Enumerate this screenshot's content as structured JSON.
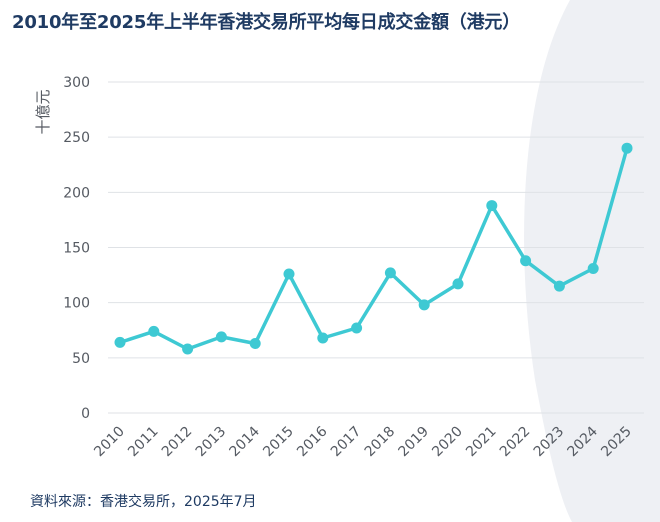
{
  "title": "2010年至2025年上半年香港交易所平均每日成交金額（港元）",
  "source": "資料來源：香港交易所，2025年7月",
  "colors": {
    "line": "#3ec9d3",
    "title": "#1f3b63",
    "grid": "#dfe2e6",
    "background_curve": "#eef0f4"
  },
  "chart_data": {
    "type": "line",
    "title": "2010年至2025年上半年香港交易所平均每日成交金額（港元）",
    "xlabel": "",
    "ylabel": "十億元",
    "ylim": [
      0,
      300
    ],
    "yticks": [
      0,
      50,
      100,
      150,
      200,
      250,
      300
    ],
    "grid": true,
    "categories": [
      "2010",
      "2011",
      "2012",
      "2013",
      "2014",
      "2015",
      "2016",
      "2017",
      "2018",
      "2019",
      "2020",
      "2021",
      "2022",
      "2023",
      "2024",
      "2025"
    ],
    "series": [
      {
        "values": [
          64,
          74,
          58,
          69,
          63,
          126,
          68,
          77,
          127,
          98,
          117,
          188,
          138,
          115,
          131,
          240
        ]
      }
    ]
  }
}
